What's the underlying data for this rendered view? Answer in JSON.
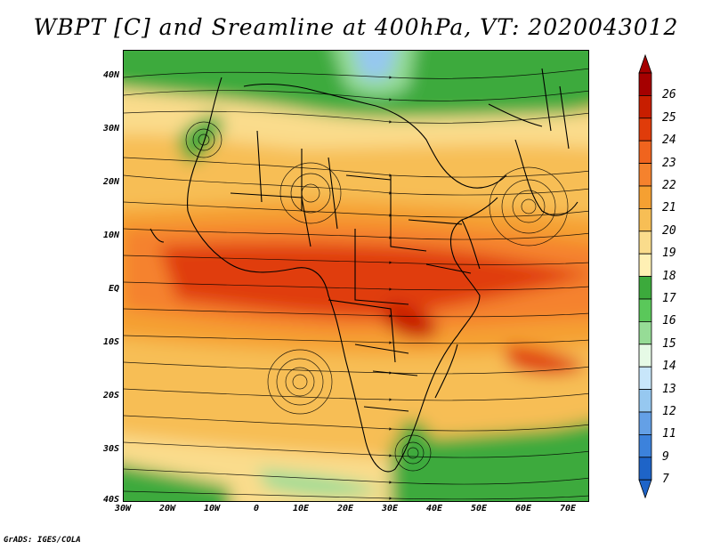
{
  "title": "WBPT [C] and Sreamline at 400hPa, VT: 2020043012",
  "credit": "GrADS: IGES/COLA",
  "map": {
    "lat_labels": [
      "40N",
      "30N",
      "20N",
      "10N",
      "EQ",
      "10S",
      "20S",
      "30S",
      "40S"
    ],
    "lon_labels": [
      "30W",
      "20W",
      "10W",
      "0",
      "10E",
      "20E",
      "30E",
      "40E",
      "50E",
      "60E",
      "70E"
    ],
    "lat_range": [
      -40,
      45
    ],
    "lon_range": [
      -30,
      75
    ]
  },
  "colorbar": {
    "labels": [
      "26",
      "25",
      "24",
      "23",
      "22",
      "21",
      "20",
      "19",
      "18",
      "17",
      "16",
      "15",
      "14",
      "13",
      "12",
      "11",
      "9",
      "7"
    ],
    "colors": [
      "#a50000",
      "#c81e00",
      "#e03c0a",
      "#f0641e",
      "#f5822d",
      "#f5a032",
      "#f7be55",
      "#fadc8c",
      "#fff0b4",
      "#3caa3c",
      "#5ac85a",
      "#96dc96",
      "#e6fae6",
      "#c8e6fa",
      "#96c8f0",
      "#64a0e6",
      "#3c82dc",
      "#1e64c8"
    ]
  }
}
